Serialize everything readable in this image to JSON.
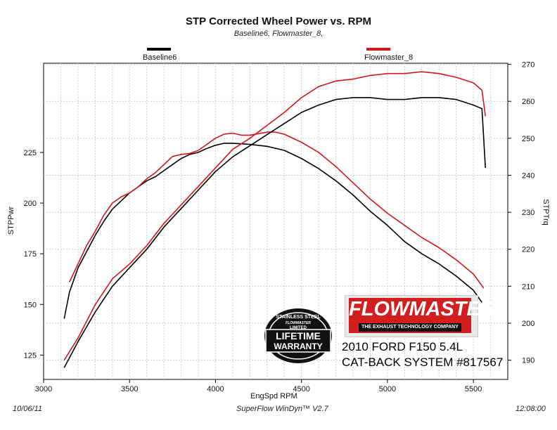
{
  "title": "STP Corrected Wheel Power vs. RPM",
  "subtitle": "Baseline6, Flowmaster_8,",
  "footer": {
    "date": "10/06/11",
    "software": "SuperFlow WinDyn™ V2.7",
    "time": "12:08:00"
  },
  "logo": {
    "brand": "FLOWMASTER",
    "tagline": "THE EXHAUST TECHNOLOGY COMPANY"
  },
  "badge": {
    "line1": "STAINLESS STEEL",
    "line2": "LIMITED",
    "line3": "LIFETIME",
    "line4": "WARRANTY",
    "brand": "FLOWMASTER"
  },
  "vehicle": {
    "line1": "2010 FORD F150 5.4L",
    "line2": "CAT-BACK SYSTEM #817567"
  },
  "colors": {
    "baseline": "#000000",
    "flowmaster": "#d01818",
    "grid": "#cccccc"
  },
  "chart_data": {
    "type": "line",
    "title": "STP Corrected Wheel Power vs. RPM",
    "subtitle": "Baseline6, Flowmaster_8,",
    "xlabel": "EngSpd RPM",
    "ylabel_left": "STPPwr",
    "ylabel_right": "STPTrq",
    "xlim": [
      3000,
      5700
    ],
    "ylim_left": [
      113,
      269
    ],
    "ylim_right": [
      184.8,
      270.3
    ],
    "x_ticks": [
      3000,
      3500,
      4000,
      4500,
      5000,
      5500
    ],
    "y_left_ticks": [
      125,
      150,
      175,
      200,
      225
    ],
    "y_right_ticks": [
      190,
      200,
      210,
      220,
      230,
      240,
      250,
      260,
      270
    ],
    "grid": true,
    "legend": [
      "Baseline6",
      "Flowmaster_8"
    ],
    "legend_placement": "top",
    "series": [
      {
        "name": "Baseline6",
        "quantity": "STPPwr",
        "axis": "left",
        "color": "#000000",
        "x": [
          3120,
          3150,
          3200,
          3250,
          3300,
          3350,
          3400,
          3450,
          3500,
          3550,
          3600,
          3650,
          3700,
          3750,
          3800,
          3850,
          3900,
          3950,
          4000,
          4050,
          4100,
          4200,
          4300,
          4400,
          4500,
          4600,
          4700,
          4800,
          4900,
          5000,
          5100,
          5200,
          5300,
          5400,
          5500,
          5550
        ],
        "y": [
          143,
          156,
          168,
          176,
          184,
          191,
          197,
          201,
          205,
          208,
          211,
          213,
          216,
          219,
          222,
          224,
          225,
          227,
          228.5,
          229.5,
          229.5,
          229,
          228,
          226,
          222,
          217,
          211,
          204,
          196,
          189,
          181,
          175,
          170,
          164,
          157,
          151
        ]
      },
      {
        "name": "Flowmaster_8",
        "quantity": "STPPwr",
        "axis": "left",
        "color": "#d01818",
        "x": [
          3150,
          3200,
          3250,
          3300,
          3350,
          3400,
          3450,
          3500,
          3550,
          3600,
          3650,
          3700,
          3750,
          3800,
          3850,
          3900,
          3950,
          4000,
          4050,
          4100,
          4150,
          4200,
          4300,
          4350,
          4400,
          4500,
          4600,
          4700,
          4800,
          4900,
          5000,
          5100,
          5200,
          5300,
          5400,
          5500,
          5560
        ],
        "y": [
          161,
          170,
          179,
          186,
          194,
          200,
          203,
          205,
          208,
          212,
          215,
          219,
          223,
          224,
          224.5,
          226,
          229,
          232,
          234,
          234.5,
          233.5,
          233.5,
          235,
          235,
          234,
          230,
          225,
          218,
          210,
          202,
          195,
          189,
          183,
          178,
          172,
          165,
          158
        ]
      },
      {
        "name": "Baseline6",
        "quantity": "STPTrq",
        "axis": "right",
        "color": "#000000",
        "x": [
          3120,
          3200,
          3300,
          3400,
          3500,
          3600,
          3700,
          3800,
          3900,
          4000,
          4100,
          4200,
          4300,
          4400,
          4500,
          4600,
          4700,
          4800,
          4900,
          5000,
          5100,
          5200,
          5300,
          5400,
          5500,
          5550,
          5570
        ],
        "y": [
          188,
          195,
          203,
          210,
          215,
          220,
          226,
          231,
          236,
          241,
          245,
          248,
          251,
          254,
          257,
          259,
          260.5,
          261,
          261,
          260.5,
          260.5,
          261,
          261,
          260.5,
          259,
          258,
          242
        ]
      },
      {
        "name": "Flowmaster_8",
        "quantity": "STPTrq",
        "axis": "right",
        "color": "#d01818",
        "x": [
          3120,
          3200,
          3300,
          3400,
          3500,
          3600,
          3700,
          3800,
          3900,
          4000,
          4100,
          4200,
          4300,
          4400,
          4500,
          4600,
          4700,
          4800,
          4900,
          5000,
          5100,
          5200,
          5300,
          5400,
          5500,
          5550,
          5570
        ],
        "y": [
          190,
          196,
          205,
          212,
          216,
          221,
          227,
          232,
          237,
          242,
          247,
          250,
          253.5,
          257,
          261,
          264,
          265.5,
          266,
          267,
          267.5,
          267.5,
          268,
          267.5,
          266.5,
          265,
          263,
          256
        ]
      }
    ]
  }
}
